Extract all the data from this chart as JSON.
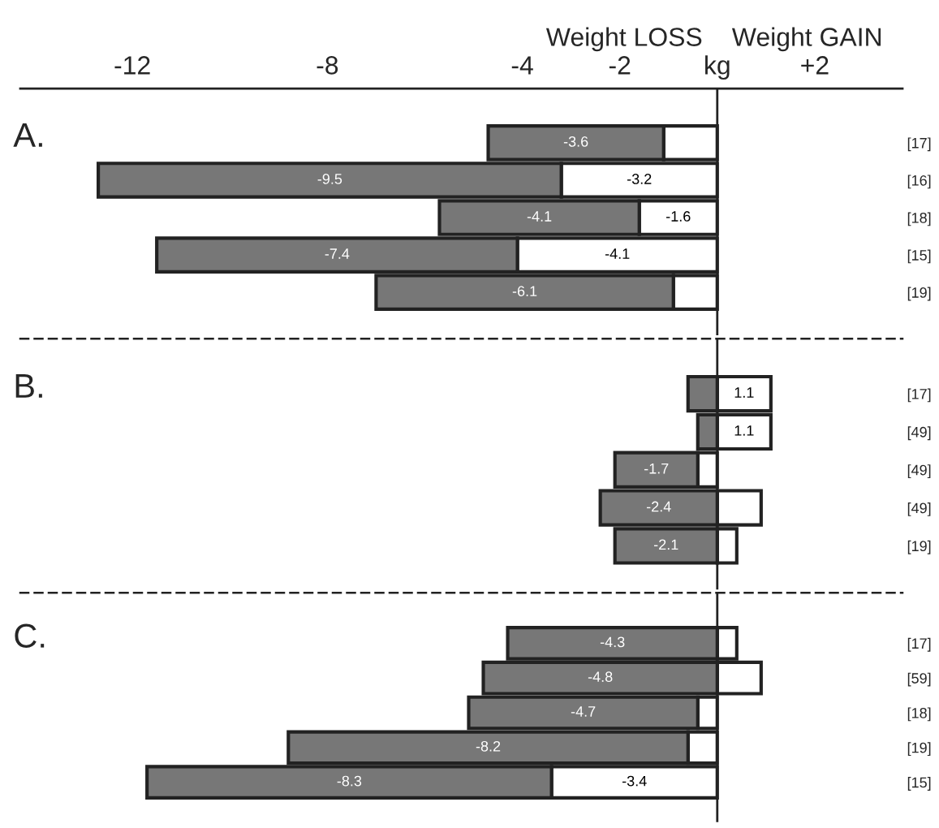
{
  "chart_data": [
    {
      "type": "bar",
      "orientation": "horizontal",
      "stacked": true,
      "title": "A.",
      "annotations": [
        "Weight LOSS",
        "Weight GAIN"
      ],
      "categories": [
        "[17]",
        "[16]",
        "[18]",
        "[15]",
        "[19]"
      ],
      "series": [
        {
          "color": "#ffffff",
          "values": [
            -1.1,
            -3.2,
            -1.6,
            -4.1,
            -0.9
          ],
          "value_labels": [
            null,
            "-3.2",
            "-1.6",
            "-4.1",
            null
          ]
        },
        {
          "color": "#777777",
          "values": [
            -3.6,
            -9.5,
            -4.1,
            -7.4,
            -6.1
          ],
          "value_labels": [
            "-3.6",
            "-9.5",
            "-4.1",
            "-7.4",
            "-6.1"
          ]
        }
      ],
      "xlim": [
        -14.3,
        3.8
      ],
      "xticks": [
        -12,
        -8,
        -4,
        -2,
        {
          "value": 0,
          "label": "kg"
        },
        {
          "value": 2,
          "label": "+2"
        }
      ],
      "ref_lines": [
        {
          "axis": "x",
          "value": 0
        }
      ]
    },
    {
      "type": "bar",
      "orientation": "horizontal",
      "stacked": true,
      "title": "B.",
      "tick_labels": "y",
      "categories": [
        "[17]",
        "[49]",
        "[49]",
        "[49]",
        "[19]"
      ],
      "series": [
        {
          "color": "#ffffff",
          "values": [
            1.1,
            1.1,
            -0.4,
            0.9,
            0.4
          ],
          "value_labels": [
            "1.1",
            "1.1",
            null,
            null,
            null
          ]
        },
        {
          "color": "#777777",
          "values": [
            -0.6,
            -0.4,
            -1.7,
            -2.4,
            -2.1
          ],
          "value_labels": [
            null,
            null,
            "-1.7",
            "-2.4",
            "-2.1"
          ]
        }
      ],
      "xlim": [
        -14.3,
        3.8
      ],
      "ref_lines": [
        {
          "axis": "x",
          "value": 0
        }
      ]
    },
    {
      "type": "bar",
      "orientation": "horizontal",
      "stacked": true,
      "title": "C.",
      "tick_labels": "y",
      "categories": [
        "[17]",
        "[59]",
        "[18]",
        "[19]",
        "[15]"
      ],
      "series": [
        {
          "color": "#ffffff",
          "values": [
            0.4,
            0.9,
            -0.4,
            -0.6,
            -3.4
          ],
          "value_labels": [
            null,
            null,
            null,
            null,
            "-3.4"
          ]
        },
        {
          "color": "#777777",
          "values": [
            -4.3,
            -4.8,
            -4.7,
            -8.2,
            -8.3
          ],
          "value_labels": [
            "-4.3",
            "-4.8",
            "-4.7",
            "-8.2",
            "-8.3"
          ]
        }
      ],
      "ref_lines": [
        {
          "axis": "x",
          "value": 0
        }
      ]
    }
  ]
}
